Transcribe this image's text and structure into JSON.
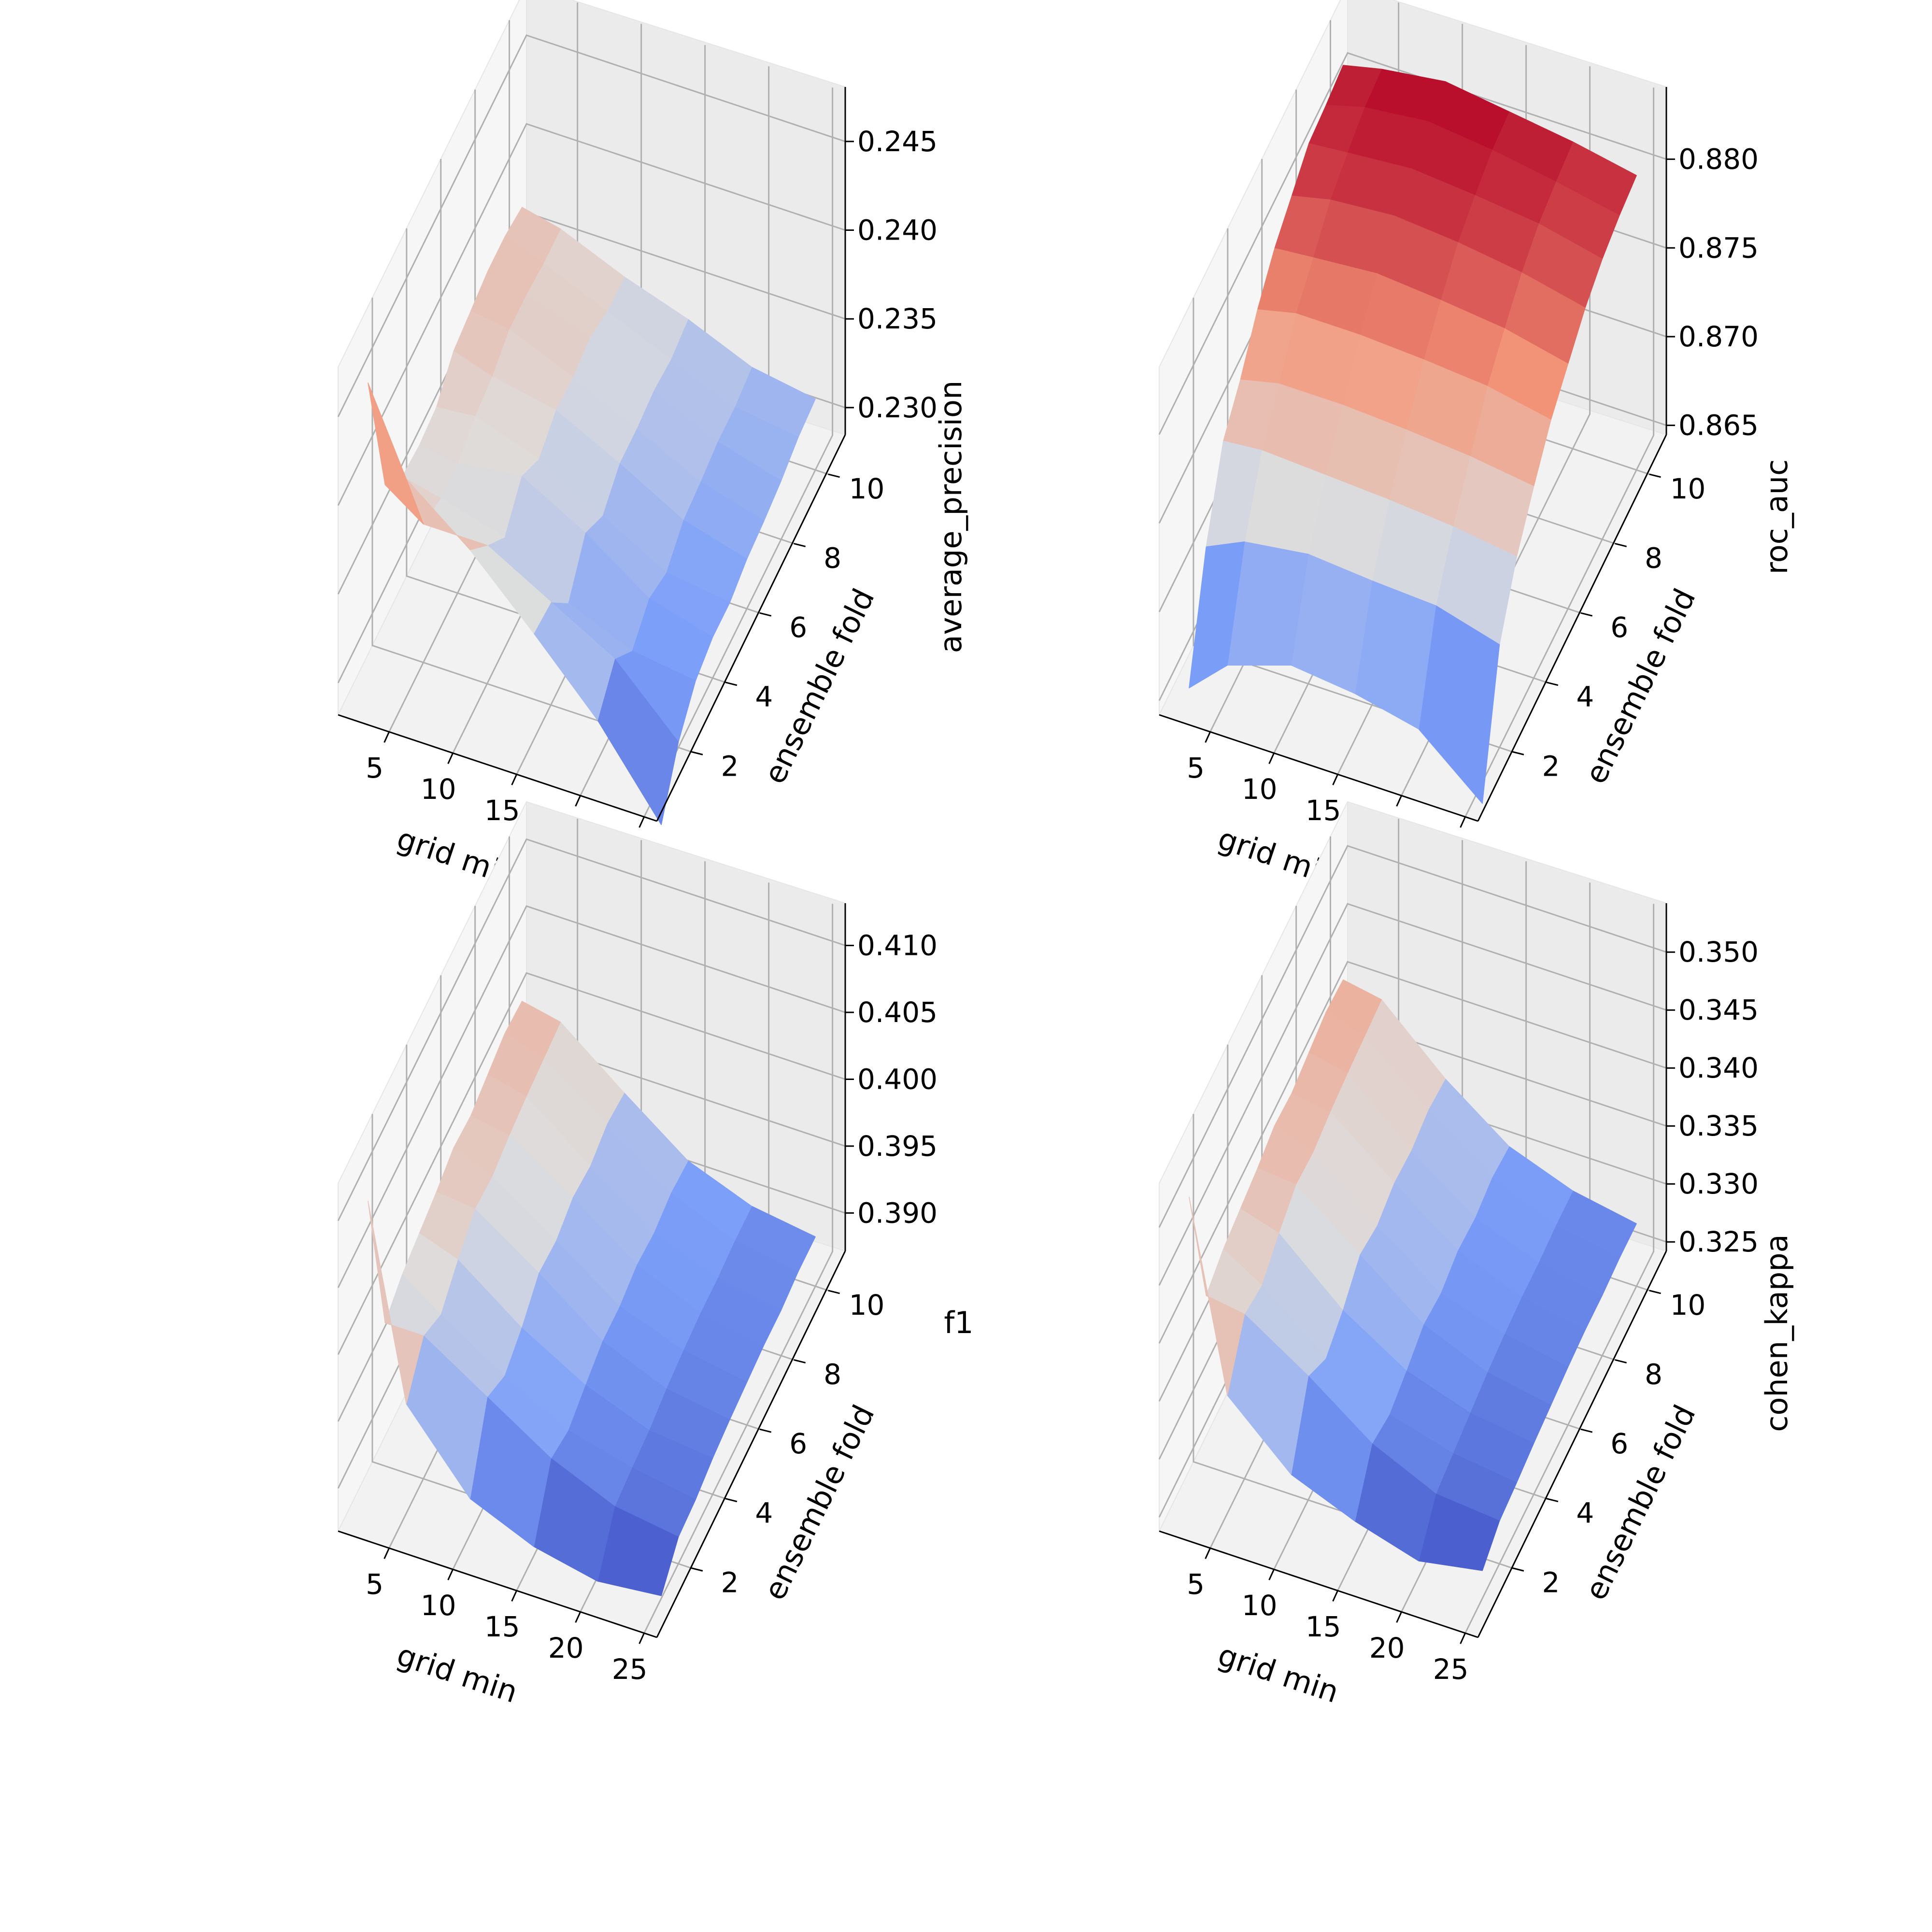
{
  "chart_data": [
    {
      "type": "surface3d",
      "xlabel": "grid min",
      "ylabel": "ensemble fold",
      "zlabel": "average_precision",
      "x": [
        2,
        5,
        10,
        15,
        20,
        25
      ],
      "y": [
        1,
        2,
        3,
        4,
        5,
        6,
        7,
        8,
        9,
        10
      ],
      "xticks": [
        "5",
        "10",
        "15",
        "20",
        "25"
      ],
      "yticks": [
        "2",
        "4",
        "6",
        "8",
        "10"
      ],
      "zticks": [
        "0.230",
        "0.235",
        "0.240",
        "0.245"
      ],
      "xlim": [
        1,
        26
      ],
      "ylim": [
        0,
        11
      ],
      "zlim": [
        0.2282,
        0.2478
      ],
      "values": [
        [
          0.2452,
          0.2405,
          0.2377,
          0.2342,
          0.2305,
          0.2258
        ],
        [
          0.2375,
          0.236,
          0.236,
          0.234,
          0.232,
          0.2285
        ],
        [
          0.236,
          0.2355,
          0.2345,
          0.232,
          0.2305,
          0.23
        ],
        [
          0.2358,
          0.2355,
          0.236,
          0.234,
          0.2315,
          0.2305
        ],
        [
          0.236,
          0.2362,
          0.235,
          0.233,
          0.231,
          0.2305
        ],
        [
          0.2372,
          0.2365,
          0.2358,
          0.234,
          0.232,
          0.231
        ],
        [
          0.2375,
          0.2372,
          0.2357,
          0.234,
          0.2322,
          0.2312
        ],
        [
          0.2378,
          0.2372,
          0.236,
          0.2342,
          0.2325,
          0.2315
        ],
        [
          0.2378,
          0.237,
          0.2355,
          0.234,
          0.2325,
          0.232
        ],
        [
          0.2375,
          0.237,
          0.2355,
          0.2343,
          0.2328,
          0.2322
        ]
      ]
    },
    {
      "type": "surface3d",
      "xlabel": "grid min",
      "ylabel": "ensemble fold",
      "zlabel": "roc_auc",
      "x": [
        2,
        5,
        10,
        15,
        20,
        25
      ],
      "y": [
        1,
        2,
        3,
        4,
        5,
        6,
        7,
        8,
        9,
        10
      ],
      "xticks": [
        "5",
        "10",
        "15",
        "20",
        "25"
      ],
      "yticks": [
        "2",
        "4",
        "6",
        "8",
        "10"
      ],
      "zticks": [
        "0.865",
        "0.870",
        "0.875",
        "0.880"
      ],
      "xlim": [
        1,
        26
      ],
      "ylim": [
        0,
        11
      ],
      "zlim": [
        0.8642,
        0.8838
      ],
      "values": [
        [
          0.864,
          0.866,
          0.8672,
          0.8668,
          0.866,
          0.863
        ],
        [
          0.87,
          0.871,
          0.8715,
          0.8712,
          0.871,
          0.87
        ],
        [
          0.874,
          0.8742,
          0.874,
          0.8738,
          0.8735,
          0.873
        ],
        [
          0.8755,
          0.876,
          0.876,
          0.8758,
          0.8755,
          0.875
        ],
        [
          0.8775,
          0.878,
          0.878,
          0.8778,
          0.8775,
          0.8768
        ],
        [
          0.879,
          0.8792,
          0.8795,
          0.8792,
          0.8788,
          0.878
        ],
        [
          0.88,
          0.8805,
          0.8808,
          0.8805,
          0.88,
          0.8792
        ],
        [
          0.881,
          0.8812,
          0.8815,
          0.8812,
          0.8808,
          0.88
        ],
        [
          0.8812,
          0.8818,
          0.8822,
          0.8818,
          0.8812,
          0.8805
        ],
        [
          0.8815,
          0.882,
          0.8825,
          0.882,
          0.8815,
          0.8808
        ]
      ]
    },
    {
      "type": "surface3d",
      "xlabel": "grid min",
      "ylabel": "ensemble fold",
      "zlabel": "f1",
      "x": [
        2,
        5,
        10,
        15,
        20,
        25
      ],
      "y": [
        1,
        2,
        3,
        4,
        5,
        6,
        7,
        8,
        9,
        10
      ],
      "xticks": [
        "5",
        "10",
        "15",
        "20",
        "25"
      ],
      "yticks": [
        "2",
        "4",
        "6",
        "8",
        "10"
      ],
      "zticks": [
        "0.390",
        "0.395",
        "0.400",
        "0.405",
        "0.410"
      ],
      "xlim": [
        1,
        26
      ],
      "ylim": [
        0,
        11
      ],
      "zlim": [
        0.3868,
        0.4128
      ],
      "values": [
        [
          0.4092,
          0.395,
          0.3895,
          0.3875,
          0.3865,
          0.387
        ],
        [
          0.3975,
          0.3975,
          0.3945,
          0.3915,
          0.3895,
          0.3888
        ],
        [
          0.3985,
          0.3965,
          0.3935,
          0.391,
          0.3898,
          0.389
        ],
        [
          0.399,
          0.398,
          0.3945,
          0.3918,
          0.39,
          0.3895
        ],
        [
          0.3995,
          0.3992,
          0.396,
          0.3925,
          0.3905,
          0.3898
        ],
        [
          0.4002,
          0.399,
          0.3958,
          0.3925,
          0.3908,
          0.39
        ],
        [
          0.4,
          0.3995,
          0.3965,
          0.393,
          0.391,
          0.3902
        ],
        [
          0.4005,
          0.3998,
          0.3962,
          0.3928,
          0.391,
          0.3902
        ],
        [
          0.401,
          0.4,
          0.3968,
          0.3932,
          0.3912,
          0.3905
        ],
        [
          0.4008,
          0.4002,
          0.3965,
          0.393,
          0.3912,
          0.3905
        ]
      ]
    },
    {
      "type": "surface3d",
      "xlabel": "grid min",
      "ylabel": "ensemble fold",
      "zlabel": "cohen_kappa",
      "x": [
        2,
        5,
        10,
        15,
        20,
        25
      ],
      "y": [
        1,
        2,
        3,
        4,
        5,
        6,
        7,
        8,
        9,
        10
      ],
      "xticks": [
        "5",
        "10",
        "15",
        "20",
        "25"
      ],
      "yticks": [
        "2",
        "4",
        "6",
        "8",
        "10"
      ],
      "zticks": [
        "0.325",
        "0.330",
        "0.335",
        "0.340",
        "0.345",
        "0.350"
      ],
      "xlim": [
        1,
        26
      ],
      "ylim": [
        0,
        11
      ],
      "zlim": [
        0.3238,
        0.3538
      ],
      "values": [
        [
          0.35,
          0.334,
          0.329,
          0.3268,
          0.3252,
          0.3262
        ],
        [
          0.3385,
          0.338,
          0.3345,
          0.3305,
          0.328,
          0.3275
        ],
        [
          0.3395,
          0.3375,
          0.333,
          0.33,
          0.3285,
          0.3278
        ],
        [
          0.34,
          0.339,
          0.3342,
          0.3308,
          0.329,
          0.3282
        ],
        [
          0.3405,
          0.3402,
          0.336,
          0.3318,
          0.3295,
          0.3285
        ],
        [
          0.3412,
          0.34,
          0.3355,
          0.3315,
          0.3298,
          0.3288
        ],
        [
          0.341,
          0.3405,
          0.3362,
          0.3322,
          0.33,
          0.329
        ],
        [
          0.3415,
          0.3408,
          0.336,
          0.332,
          0.33,
          0.329
        ],
        [
          0.342,
          0.341,
          0.3365,
          0.3325,
          0.3302,
          0.3292
        ],
        [
          0.3418,
          0.3412,
          0.3362,
          0.3322,
          0.3302,
          0.3292
        ]
      ]
    }
  ]
}
